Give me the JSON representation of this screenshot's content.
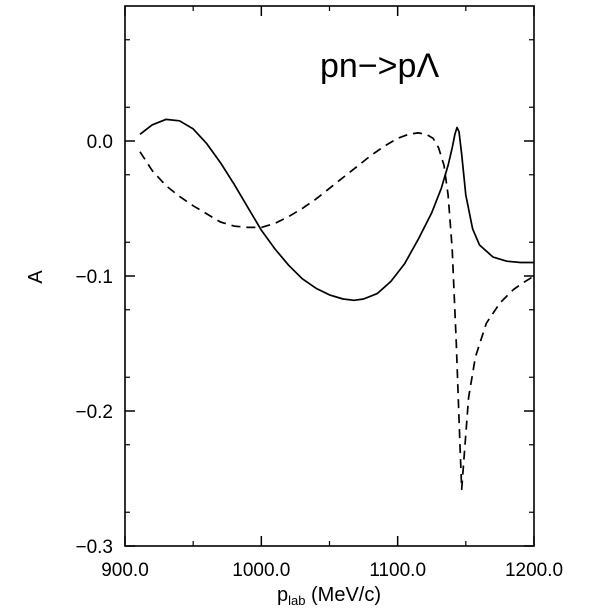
{
  "chart_data": {
    "type": "line",
    "title": "",
    "annotation": "pn−>pΛ",
    "xlabel_main": "p",
    "xlabel_sub": "lab",
    "xlabel_unit": " (MeV/c)",
    "ylabel": "A",
    "xlim": [
      900,
      1200
    ],
    "ylim": [
      -0.3,
      0.1
    ],
    "grid": false,
    "legend": "none",
    "x_ticks": [
      {
        "value": 900,
        "label": "900.0"
      },
      {
        "value": 1000,
        "label": "1000.0"
      },
      {
        "value": 1100,
        "label": "1100.0"
      },
      {
        "value": 1200,
        "label": "1200.0"
      }
    ],
    "y_ticks": [
      {
        "value": 0.0,
        "label": "0.0"
      },
      {
        "value": -0.1,
        "label": "−0.1"
      },
      {
        "value": -0.2,
        "label": "−0.2"
      },
      {
        "value": -0.3,
        "label": "−0.3"
      }
    ],
    "series": [
      {
        "style": "solid",
        "points": [
          [
            911,
            0.005
          ],
          [
            920,
            0.012
          ],
          [
            930,
            0.016
          ],
          [
            940,
            0.015
          ],
          [
            950,
            0.009
          ],
          [
            960,
            -0.002
          ],
          [
            970,
            -0.016
          ],
          [
            980,
            -0.032
          ],
          [
            990,
            -0.049
          ],
          [
            1000,
            -0.066
          ],
          [
            1010,
            -0.08
          ],
          [
            1020,
            -0.092
          ],
          [
            1030,
            -0.102
          ],
          [
            1040,
            -0.109
          ],
          [
            1050,
            -0.114
          ],
          [
            1060,
            -0.117
          ],
          [
            1068,
            -0.118
          ],
          [
            1075,
            -0.117
          ],
          [
            1085,
            -0.113
          ],
          [
            1095,
            -0.104
          ],
          [
            1105,
            -0.091
          ],
          [
            1115,
            -0.073
          ],
          [
            1125,
            -0.053
          ],
          [
            1132,
            -0.035
          ],
          [
            1137,
            -0.018
          ],
          [
            1140,
            -0.005
          ],
          [
            1142,
            0.005
          ],
          [
            1143.5,
            0.01
          ],
          [
            1145,
            0.007
          ],
          [
            1147,
            -0.01
          ],
          [
            1150,
            -0.04
          ],
          [
            1155,
            -0.065
          ],
          [
            1160,
            -0.077
          ],
          [
            1170,
            -0.086
          ],
          [
            1180,
            -0.089
          ],
          [
            1190,
            -0.09
          ],
          [
            1200,
            -0.09
          ]
        ]
      },
      {
        "style": "dashed",
        "points": [
          [
            911,
            -0.008
          ],
          [
            920,
            -0.022
          ],
          [
            930,
            -0.033
          ],
          [
            940,
            -0.041
          ],
          [
            950,
            -0.048
          ],
          [
            960,
            -0.054
          ],
          [
            970,
            -0.06
          ],
          [
            980,
            -0.063
          ],
          [
            990,
            -0.064
          ],
          [
            1000,
            -0.064
          ],
          [
            1010,
            -0.061
          ],
          [
            1020,
            -0.056
          ],
          [
            1030,
            -0.05
          ],
          [
            1040,
            -0.043
          ],
          [
            1050,
            -0.035
          ],
          [
            1060,
            -0.027
          ],
          [
            1070,
            -0.019
          ],
          [
            1080,
            -0.011
          ],
          [
            1090,
            -0.004
          ],
          [
            1100,
            0.002
          ],
          [
            1108,
            0.005
          ],
          [
            1115,
            0.006
          ],
          [
            1121,
            0.005
          ],
          [
            1126,
            0.002
          ],
          [
            1130,
            -0.005
          ],
          [
            1134,
            -0.018
          ],
          [
            1137,
            -0.04
          ],
          [
            1140,
            -0.08
          ],
          [
            1143,
            -0.15
          ],
          [
            1145.5,
            -0.22
          ],
          [
            1147,
            -0.258
          ],
          [
            1149,
            -0.23
          ],
          [
            1152,
            -0.19
          ],
          [
            1157,
            -0.16
          ],
          [
            1165,
            -0.135
          ],
          [
            1175,
            -0.12
          ],
          [
            1185,
            -0.11
          ],
          [
            1192,
            -0.105
          ],
          [
            1200,
            -0.1
          ]
        ]
      }
    ]
  }
}
